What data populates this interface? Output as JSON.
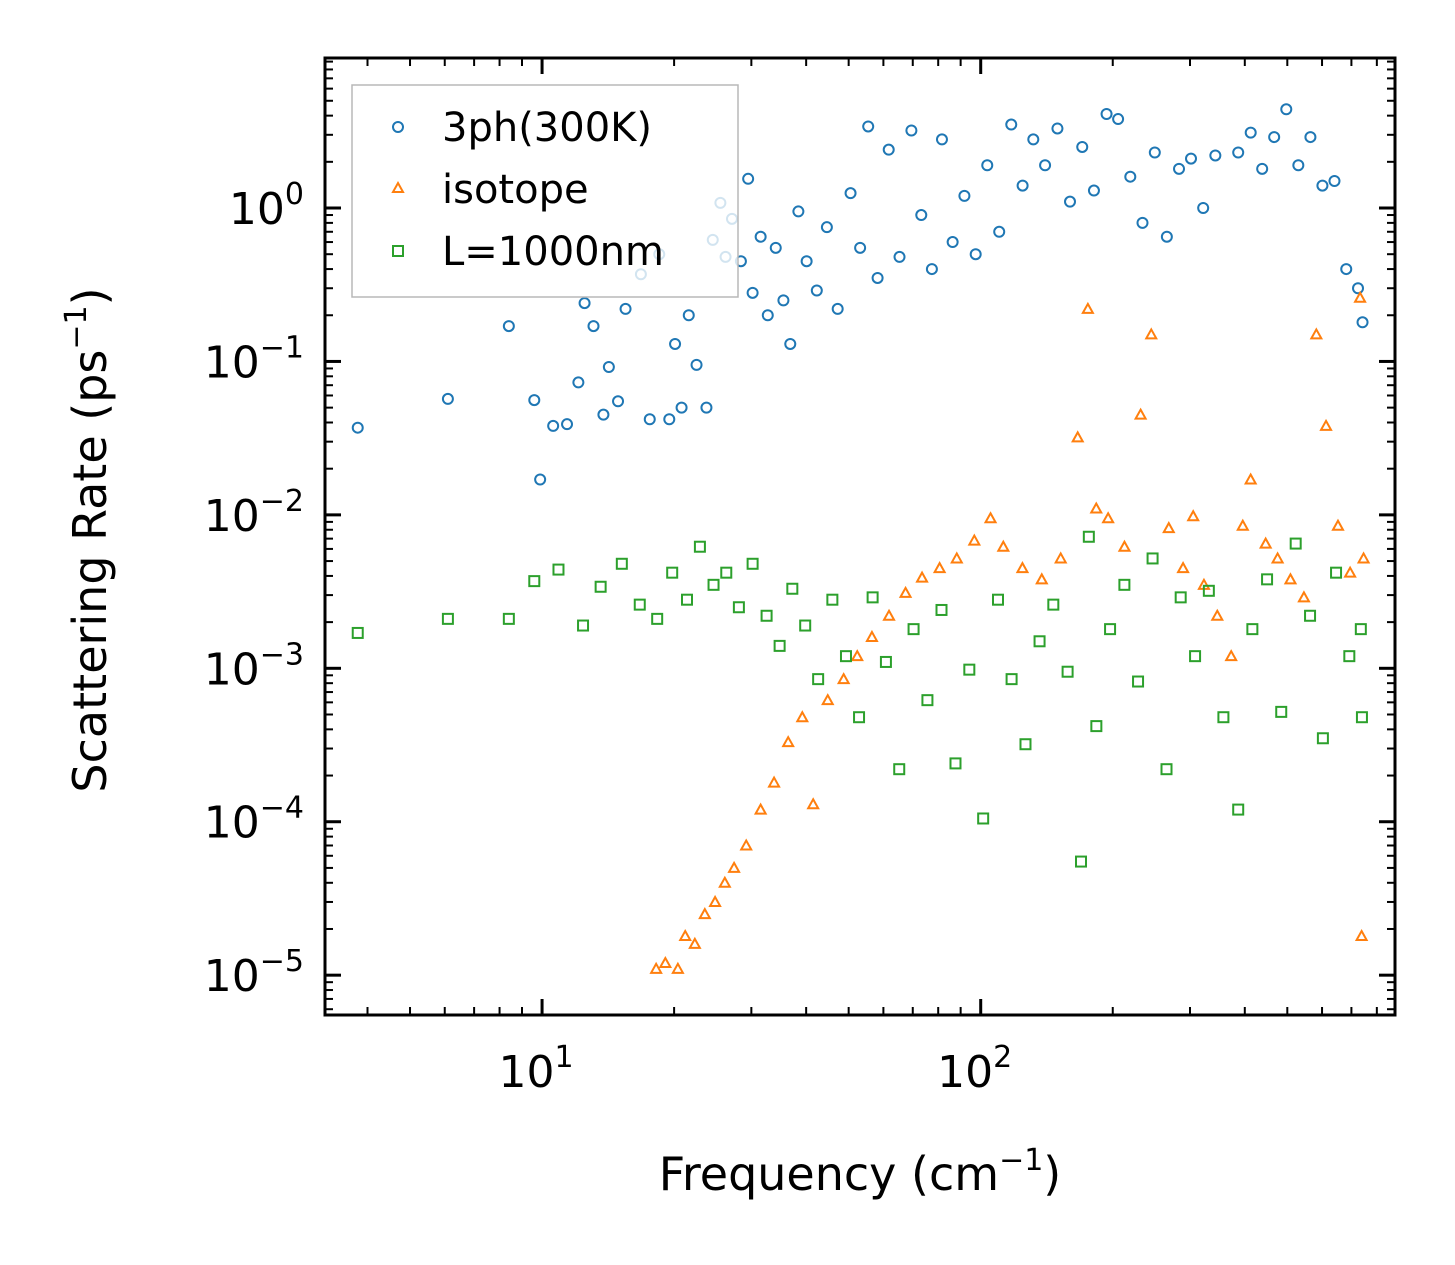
{
  "chart_data": {
    "type": "scatter",
    "title": "",
    "xlabel": "Frequency (cm",
    "xlabel_sup": "−1",
    "xlabel_end": ")",
    "ylabel": "Scattering Rate (ps",
    "ylabel_sup": "−1",
    "ylabel_end": ")",
    "xscale": "log",
    "yscale": "log",
    "xlim": [
      3.2,
      880
    ],
    "ylim": [
      5.5e-06,
      9.5
    ],
    "x_ticks": [
      {
        "value": 10,
        "base": "10",
        "exp": "1"
      },
      {
        "value": 100,
        "base": "10",
        "exp": "2"
      }
    ],
    "y_ticks": [
      {
        "value": 1,
        "base": "10",
        "exp": "0"
      },
      {
        "value": 0.1,
        "base": "10",
        "exp": "−1"
      },
      {
        "value": 0.01,
        "base": "10",
        "exp": "−2"
      },
      {
        "value": 0.001,
        "base": "10",
        "exp": "−3"
      },
      {
        "value": 0.0001,
        "base": "10",
        "exp": "−4"
      },
      {
        "value": 1e-05,
        "base": "10",
        "exp": "−5"
      }
    ],
    "legend_position": "top-left",
    "series": [
      {
        "name": "3ph(300K)",
        "marker": "circle",
        "color": "#1f77b4",
        "points": [
          [
            3.8,
            0.037
          ],
          [
            6.1,
            0.057
          ],
          [
            8.4,
            0.17
          ],
          [
            9.6,
            0.056
          ],
          [
            9.9,
            0.017
          ],
          [
            10.6,
            0.038
          ],
          [
            11.4,
            0.039
          ],
          [
            12.1,
            0.073
          ],
          [
            12.5,
            0.24
          ],
          [
            13.1,
            0.17
          ],
          [
            13.8,
            0.045
          ],
          [
            14.2,
            0.092
          ],
          [
            14.9,
            0.055
          ],
          [
            15.5,
            0.22
          ],
          [
            16.8,
            0.37
          ],
          [
            17.6,
            0.042
          ],
          [
            18.5,
            0.5
          ],
          [
            19.5,
            0.042
          ],
          [
            20.1,
            0.13
          ],
          [
            20.8,
            0.05
          ],
          [
            21.6,
            0.2
          ],
          [
            22.5,
            0.095
          ],
          [
            23.7,
            0.05
          ],
          [
            24.5,
            0.62
          ],
          [
            25.5,
            1.08
          ],
          [
            26.2,
            0.48
          ],
          [
            27.1,
            0.85
          ],
          [
            28.4,
            0.45
          ],
          [
            29.5,
            1.55
          ],
          [
            30.2,
            0.28
          ],
          [
            31.5,
            0.65
          ],
          [
            32.7,
            0.2
          ],
          [
            34.1,
            0.55
          ],
          [
            35.5,
            0.25
          ],
          [
            36.8,
            0.13
          ],
          [
            38.4,
            0.95
          ],
          [
            40.1,
            0.45
          ],
          [
            42.3,
            0.29
          ],
          [
            44.6,
            0.75
          ],
          [
            47.2,
            0.22
          ],
          [
            50.5,
            1.25
          ],
          [
            53.1,
            0.55
          ],
          [
            55.4,
            3.4
          ],
          [
            58.2,
            0.35
          ],
          [
            61.7,
            2.4
          ],
          [
            65.3,
            0.48
          ],
          [
            69.5,
            3.2
          ],
          [
            73.2,
            0.9
          ],
          [
            77.4,
            0.4
          ],
          [
            81.6,
            2.8
          ],
          [
            86.3,
            0.6
          ],
          [
            91.8,
            1.2
          ],
          [
            97.4,
            0.5
          ],
          [
            103.5,
            1.9
          ],
          [
            110.2,
            0.7
          ],
          [
            117.4,
            3.5
          ],
          [
            124.6,
            1.4
          ],
          [
            131.8,
            2.8
          ],
          [
            140.2,
            1.9
          ],
          [
            149.6,
            3.3
          ],
          [
            159.8,
            1.1
          ],
          [
            170.4,
            2.5
          ],
          [
            181.2,
            1.3
          ],
          [
            193.6,
            4.1
          ],
          [
            205.7,
            3.8
          ],
          [
            219.3,
            1.6
          ],
          [
            233.8,
            0.8
          ],
          [
            249.4,
            2.3
          ],
          [
            265.7,
            0.65
          ],
          [
            283.2,
            1.8
          ],
          [
            301.6,
            2.1
          ],
          [
            321.5,
            1.0
          ],
          [
            342.7,
            2.2
          ],
          [
            386.4,
            2.3
          ],
          [
            412.6,
            3.1
          ],
          [
            438.2,
            1.8
          ],
          [
            466.7,
            2.9
          ],
          [
            497.3,
            4.4
          ],
          [
            529.8,
            1.9
          ],
          [
            564.5,
            2.9
          ],
          [
            601.2,
            1.4
          ],
          [
            640.5,
            1.5
          ],
          [
            681.3,
            0.4
          ],
          [
            724.7,
            0.3
          ],
          [
            742.1,
            0.18
          ]
        ]
      },
      {
        "name": "isotope",
        "marker": "triangle",
        "color": "#ff7f0e",
        "points": [
          [
            18.2,
            1.1e-05
          ],
          [
            19.1,
            1.2e-05
          ],
          [
            20.4,
            1.1e-05
          ],
          [
            21.2,
            1.8e-05
          ],
          [
            22.3,
            1.6e-05
          ],
          [
            23.5,
            2.5e-05
          ],
          [
            24.8,
            3e-05
          ],
          [
            26.1,
            4e-05
          ],
          [
            27.4,
            5e-05
          ],
          [
            29.2,
            7e-05
          ],
          [
            31.5,
            0.00012
          ],
          [
            33.8,
            0.00018
          ],
          [
            36.4,
            0.00033
          ],
          [
            39.2,
            0.00048
          ],
          [
            41.5,
            0.00013
          ],
          [
            44.8,
            0.00062
          ],
          [
            48.7,
            0.00085
          ],
          [
            52.3,
            0.0012
          ],
          [
            56.5,
            0.0016
          ],
          [
            61.8,
            0.0022
          ],
          [
            67.4,
            0.0031
          ],
          [
            73.5,
            0.0039
          ],
          [
            80.6,
            0.0045
          ],
          [
            88.2,
            0.0052
          ],
          [
            96.7,
            0.0068
          ],
          [
            105.3,
            0.0095
          ],
          [
            112.6,
            0.0062
          ],
          [
            124.5,
            0.0045
          ],
          [
            137.8,
            0.0038
          ],
          [
            152.2,
            0.0052
          ],
          [
            166.4,
            0.032
          ],
          [
            175.5,
            0.22
          ],
          [
            183.4,
            0.011
          ],
          [
            195.2,
            0.0095
          ],
          [
            212.7,
            0.0062
          ],
          [
            231.5,
            0.045
          ],
          [
            244.8,
            0.15
          ],
          [
            268.4,
            0.0082
          ],
          [
            289.3,
            0.0045
          ],
          [
            305.1,
            0.0098
          ],
          [
            322.8,
            0.0035
          ],
          [
            346.2,
            0.0022
          ],
          [
            372.4,
            0.0012
          ],
          [
            395.8,
            0.0085
          ],
          [
            412.5,
            0.017
          ],
          [
            446.3,
            0.0065
          ],
          [
            475.2,
            0.0052
          ],
          [
            508.4,
            0.0038
          ],
          [
            545.6,
            0.0029
          ],
          [
            582.3,
            0.15
          ],
          [
            612.7,
            0.038
          ],
          [
            652.4,
            0.0085
          ],
          [
            695.3,
            0.0042
          ],
          [
            732.6,
            0.26
          ],
          [
            746.2,
            0.0052
          ],
          [
            738.5,
            1.8e-05
          ]
        ]
      },
      {
        "name": "L=1000nm",
        "marker": "square",
        "color": "#2ca02c",
        "points": [
          [
            3.8,
            0.0017
          ],
          [
            6.1,
            0.0021
          ],
          [
            8.4,
            0.0021
          ],
          [
            9.6,
            0.0037
          ],
          [
            10.9,
            0.0044
          ],
          [
            12.4,
            0.0019
          ],
          [
            13.6,
            0.0034
          ],
          [
            15.2,
            0.0048
          ],
          [
            16.7,
            0.0026
          ],
          [
            18.3,
            0.0021
          ],
          [
            19.8,
            0.0042
          ],
          [
            21.4,
            0.0028
          ],
          [
            22.9,
            0.0062
          ],
          [
            24.6,
            0.0035
          ],
          [
            26.3,
            0.0042
          ],
          [
            28.1,
            0.0025
          ],
          [
            30.2,
            0.0048
          ],
          [
            32.5,
            0.0022
          ],
          [
            34.8,
            0.0014
          ],
          [
            37.2,
            0.0033
          ],
          [
            39.8,
            0.0019
          ],
          [
            42.6,
            0.00085
          ],
          [
            45.9,
            0.0028
          ],
          [
            49.3,
            0.0012
          ],
          [
            52.8,
            0.00048
          ],
          [
            56.7,
            0.0029
          ],
          [
            60.8,
            0.0011
          ],
          [
            65.2,
            0.00022
          ],
          [
            70.3,
            0.0018
          ],
          [
            75.6,
            0.00062
          ],
          [
            81.4,
            0.0024
          ],
          [
            87.6,
            0.00024
          ],
          [
            94.2,
            0.00098
          ],
          [
            101.3,
            0.000105
          ],
          [
            109.5,
            0.0028
          ],
          [
            117.6,
            0.00085
          ],
          [
            126.5,
            0.00032
          ],
          [
            136.2,
            0.0015
          ],
          [
            146.4,
            0.0026
          ],
          [
            157.8,
            0.00095
          ],
          [
            169.3,
            5.5e-05
          ],
          [
            176.4,
            0.0072
          ],
          [
            183.5,
            0.00042
          ],
          [
            197.2,
            0.0018
          ],
          [
            212.6,
            0.0035
          ],
          [
            228.4,
            0.00082
          ],
          [
            246.5,
            0.0052
          ],
          [
            265.2,
            0.00022
          ],
          [
            285.7,
            0.0029
          ],
          [
            308.1,
            0.0012
          ],
          [
            331.2,
            0.0032
          ],
          [
            357.5,
            0.00048
          ],
          [
            386.4,
            0.00012
          ],
          [
            416.2,
            0.0018
          ],
          [
            449.6,
            0.0038
          ],
          [
            484.3,
            0.00052
          ],
          [
            522.5,
            0.0065
          ],
          [
            563.4,
            0.0022
          ],
          [
            602.7,
            0.00035
          ],
          [
            645.8,
            0.0042
          ],
          [
            692.4,
            0.0012
          ],
          [
            735.5,
            0.0018
          ],
          [
            739.8,
            0.00048
          ]
        ]
      }
    ]
  }
}
